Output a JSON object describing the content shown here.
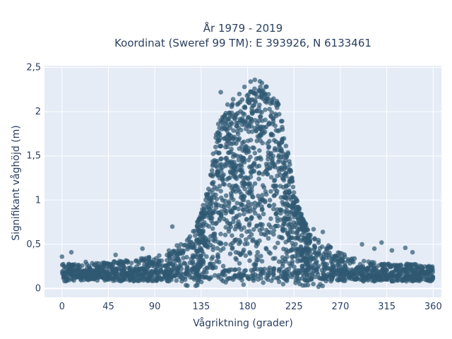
{
  "chart_data": {
    "type": "scatter",
    "title_line1": "År 1979 - 2019",
    "title_line2": "Koordinat (Sweref 99 TM): E 393926, N 6133461",
    "xlabel": "Vågriktning (grader)",
    "ylabel": "Signifikant våghöjd (m)",
    "xlim": [
      -17,
      368
    ],
    "ylim": [
      -0.1,
      2.52
    ],
    "x_ticks": [
      0,
      45,
      90,
      135,
      180,
      225,
      270,
      315,
      360
    ],
    "x_tick_labels": [
      "0",
      "45",
      "90",
      "135",
      "180",
      "225",
      "270",
      "315",
      "360"
    ],
    "y_ticks": [
      0,
      0.5,
      1,
      1.5,
      2,
      2.5
    ],
    "y_tick_labels": [
      "0",
      "0,5",
      "1",
      "1,5",
      "2",
      "2,5"
    ],
    "grid": true,
    "plot_bgcolor": "#e5ecf6",
    "marker_color": "#2f5972",
    "envelope": {
      "direction_deg": [
        0,
        20,
        45,
        70,
        95,
        110,
        125,
        135,
        145,
        150,
        155,
        160,
        170,
        180,
        190,
        195,
        200,
        210,
        215,
        220,
        225,
        232,
        240,
        250,
        260,
        270,
        280,
        300,
        320,
        340,
        360
      ],
      "upper_height_m": [
        0.25,
        0.25,
        0.27,
        0.3,
        0.35,
        0.45,
        0.6,
        0.85,
        1.4,
        1.8,
        2.0,
        2.1,
        2.1,
        2.2,
        2.35,
        2.35,
        2.3,
        2.1,
        1.8,
        1.5,
        1.1,
        0.85,
        0.65,
        0.55,
        0.45,
        0.38,
        0.32,
        0.27,
        0.25,
        0.25,
        0.22
      ]
    },
    "outliers": [
      {
        "x": 0,
        "y": 0.36
      },
      {
        "x": 9,
        "y": 0.41
      },
      {
        "x": 23,
        "y": 0.3
      },
      {
        "x": 52,
        "y": 0.38
      },
      {
        "x": 78,
        "y": 0.45
      },
      {
        "x": 107,
        "y": 0.7
      },
      {
        "x": 244,
        "y": 0.67
      },
      {
        "x": 253,
        "y": 0.64
      },
      {
        "x": 291,
        "y": 0.5
      },
      {
        "x": 303,
        "y": 0.45
      },
      {
        "x": 310,
        "y": 0.52
      },
      {
        "x": 320,
        "y": 0.43
      },
      {
        "x": 333,
        "y": 0.46
      },
      {
        "x": 340,
        "y": 0.41
      },
      {
        "x": 154,
        "y": 2.22
      },
      {
        "x": 166,
        "y": 2.14
      },
      {
        "x": 172,
        "y": 2.2
      },
      {
        "x": 177,
        "y": 2.28
      },
      {
        "x": 183,
        "y": 2.34
      },
      {
        "x": 187,
        "y": 2.36
      }
    ]
  }
}
